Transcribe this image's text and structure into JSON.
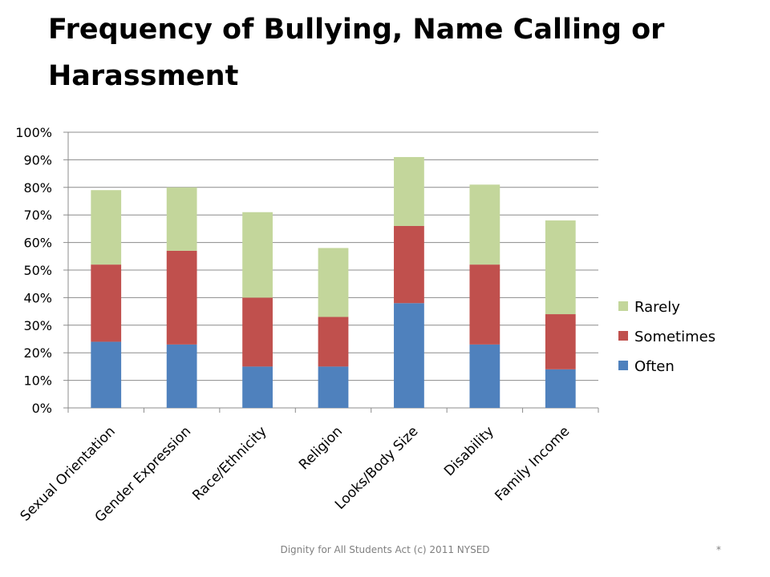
{
  "slide": {
    "title": "Frequency of Bullying, Name Calling or Harassment",
    "footer": "Dignity for All Students Act (c) 2011 NYSED",
    "slide_number": "*"
  },
  "chart_data": {
    "type": "bar",
    "stacked": true,
    "percent_axis": true,
    "categories": [
      "Sexual Orientation",
      "Gender Expression",
      "Race/Ethnicity",
      "Religion",
      "Looks/Body Size",
      "Disability",
      "Family Income"
    ],
    "series": [
      {
        "name": "Often",
        "color": "#4f81bd",
        "values": [
          24,
          23,
          15,
          15,
          38,
          23,
          14
        ]
      },
      {
        "name": "Sometimes",
        "color": "#c0504d",
        "values": [
          28,
          34,
          25,
          18,
          28,
          29,
          20
        ]
      },
      {
        "name": "Rarely",
        "color": "#c3d69b",
        "values": [
          27,
          23,
          31,
          25,
          25,
          29,
          34
        ]
      }
    ],
    "ylim": [
      0,
      100
    ],
    "yticks": [
      "0%",
      "10%",
      "20%",
      "30%",
      "40%",
      "50%",
      "60%",
      "70%",
      "80%",
      "90%",
      "100%"
    ],
    "grid": true,
    "legend_position": "right",
    "legend_order": [
      "Rarely",
      "Sometimes",
      "Often"
    ],
    "title": "",
    "xlabel": "",
    "ylabel": ""
  }
}
